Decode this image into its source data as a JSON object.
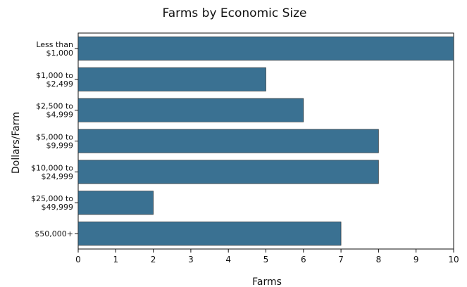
{
  "chart_data": {
    "type": "bar",
    "orientation": "horizontal",
    "title": "Farms by Economic Size",
    "xlabel": "Farms",
    "ylabel": "Dollars/Farm",
    "categories": [
      [
        "Less than",
        "$1,000"
      ],
      [
        "$1,000 to",
        "$2,499"
      ],
      [
        "$2,500 to",
        "$4,999"
      ],
      [
        "$5,000 to",
        "$9,999"
      ],
      [
        "$10,000 to",
        "$24,999"
      ],
      [
        "$25,000 to",
        "$49,999"
      ],
      [
        "$50,000+"
      ]
    ],
    "values": [
      10,
      5,
      6,
      8,
      8,
      2,
      7
    ],
    "xlim": [
      0,
      10
    ],
    "xticks": [
      "0",
      "1",
      "2",
      "3",
      "4",
      "5",
      "6",
      "7",
      "8",
      "9",
      "10"
    ],
    "grid": false,
    "bar_color": "#3a7192"
  }
}
